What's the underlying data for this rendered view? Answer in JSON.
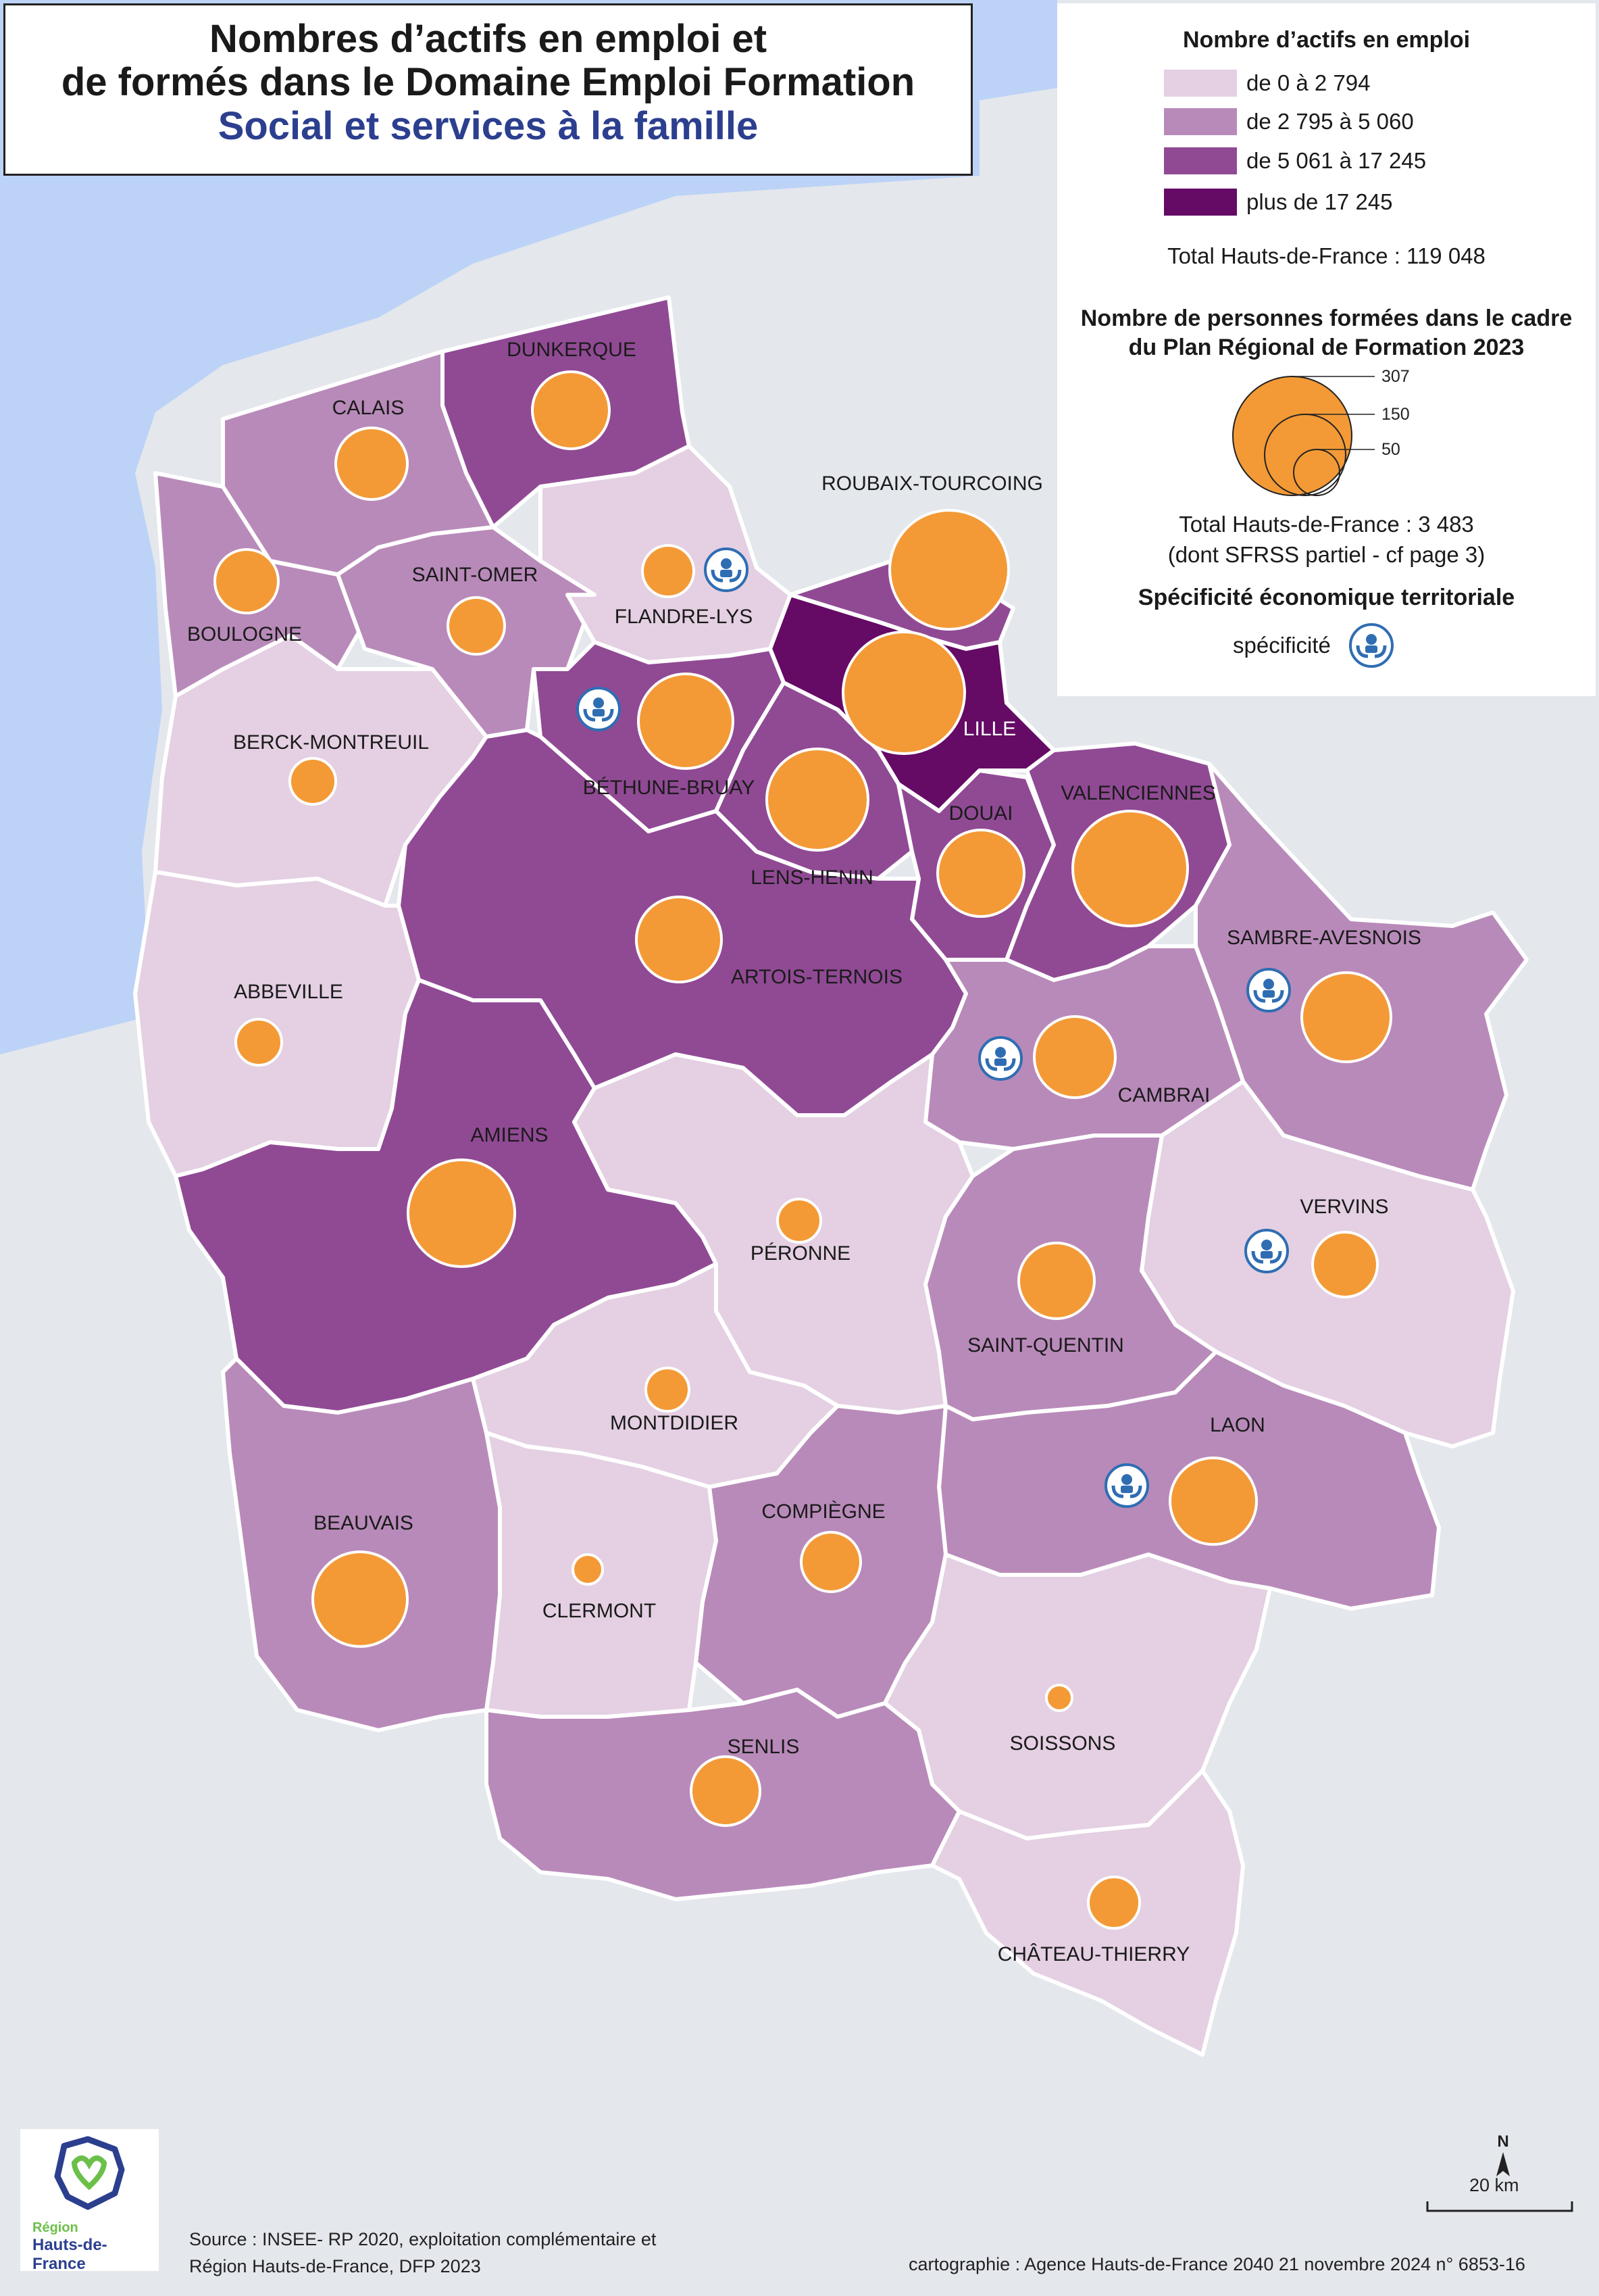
{
  "title": {
    "line1": "Nombres d’actifs en emploi et",
    "line2": "de formés dans le Domaine Emploi Formation",
    "subtitle": "Social et services à la famille"
  },
  "legend": {
    "actifs_title": "Nombre d’actifs en emploi",
    "classes": [
      {
        "label": "de 0 à 2 794",
        "color": "#e4d0e2"
      },
      {
        "label": "de 2 795 à 5 060",
        "color": "#b88ab9"
      },
      {
        "label": "de 5 061 à 17 245",
        "color": "#904a94"
      },
      {
        "label": "plus de 17 245",
        "color": "#650a65"
      }
    ],
    "actifs_total": "Total Hauts-de-France : 119 048",
    "formes_title_1": "Nombre de personnes formées dans le cadre",
    "formes_title_2": "du Plan Régional de Formation 2023",
    "circle_values": [
      "307",
      "150",
      "50"
    ],
    "formes_total": "Total Hauts-de-France :  3 483",
    "formes_note": "(dont SFRSS partiel - cf page 3)",
    "specificite_title": "Spécificité économique territoriale",
    "specificite_label": "spécificité",
    "circle_color": "#f39a36"
  },
  "zones": [
    {
      "name": "DUNKERQUE",
      "class": 3
    },
    {
      "name": "CALAIS",
      "class": 2
    },
    {
      "name": "ROUBAIX-TOURCOING",
      "class": 3
    },
    {
      "name": "SAINT-OMER",
      "class": 2
    },
    {
      "name": "FLANDRE-LYS",
      "class": 1,
      "specificite": true
    },
    {
      "name": "BOULOGNE",
      "class": 2
    },
    {
      "name": "LILLE",
      "class": 4
    },
    {
      "name": "BERCK-MONTREUIL",
      "class": 1
    },
    {
      "name": "BÉTHUNE-BRUAY",
      "class": 3,
      "specificite": true
    },
    {
      "name": "DOUAI",
      "class": 3
    },
    {
      "name": "VALENCIENNES",
      "class": 3
    },
    {
      "name": "LENS-HENIN",
      "class": 3
    },
    {
      "name": "SAMBRE-AVESNOIS",
      "class": 2,
      "specificite": true
    },
    {
      "name": "ABBEVILLE",
      "class": 1
    },
    {
      "name": "ARTOIS-TERNOIS",
      "class": 3
    },
    {
      "name": "CAMBRAI",
      "class": 2,
      "specificite": true
    },
    {
      "name": "AMIENS",
      "class": 3
    },
    {
      "name": "VERVINS",
      "class": 1,
      "specificite": true
    },
    {
      "name": "PÉRONNE",
      "class": 1
    },
    {
      "name": "SAINT-QUENTIN",
      "class": 2
    },
    {
      "name": "MONTDIDIER",
      "class": 1
    },
    {
      "name": "LAON",
      "class": 2,
      "specificite": true
    },
    {
      "name": "BEAUVAIS",
      "class": 2
    },
    {
      "name": "COMPIÈGNE",
      "class": 2
    },
    {
      "name": "CLERMONT",
      "class": 1
    },
    {
      "name": "SOISSONS",
      "class": 1
    },
    {
      "name": "SENLIS",
      "class": 2
    },
    {
      "name": "CHÂTEAU-THIERRY",
      "class": 1
    }
  ],
  "scale": {
    "north": "N",
    "label": "20 km"
  },
  "logo": {
    "line1": "Région",
    "line2": "Hauts-de-France"
  },
  "footer": {
    "source_1": "Source : INSEE- RP 2020, exploitation complémentaire et",
    "source_2": "Région Hauts-de-France, DFP 2023",
    "credit": "cartographie : Agence Hauts-de-France 2040  21 novembre 2024   n° 6853-16"
  },
  "colors": {
    "sea": "#bcd3f7",
    "land_outside": "#e4e7ec",
    "border": "#ffffff"
  }
}
